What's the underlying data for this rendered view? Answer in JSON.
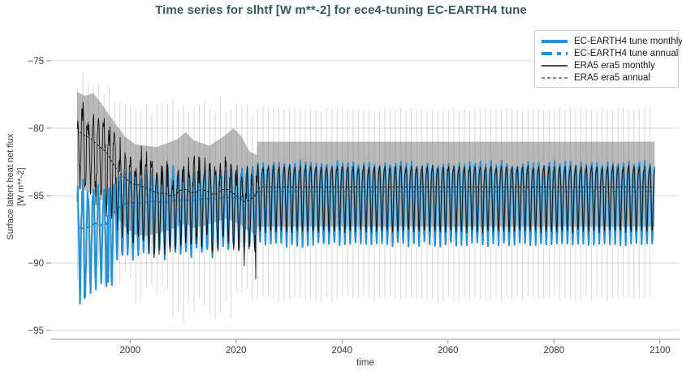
{
  "title": "Time series for slhtf [W m**-2] for ece4-tuning EC-EARTH4 tune",
  "colors": {
    "model_blue": "#2591d2",
    "ref_black": "#111111",
    "band_gray": "rgba(128,128,128,0.55)",
    "spike_gray": "rgba(130,130,130,0.30)",
    "grid": "#d9d9d9",
    "spine": "#b3b3b3",
    "tick_mark": "#8a8a8a",
    "tick_text": "#3a3a3a",
    "title_text": "#37585c"
  },
  "axes": {
    "x_label": "time",
    "y_label_line1": "Surface latent heat net flux",
    "y_label_line2": "[W m**-2]",
    "x_tick_labels": [
      "2000",
      "2020",
      "2040",
      "2060",
      "2080",
      "2100"
    ],
    "x_tick_values": [
      2000,
      2020,
      2040,
      2060,
      2080,
      2100
    ],
    "y_tick_labels": [
      "−75",
      "−80",
      "−85",
      "−90",
      "−95"
    ],
    "y_tick_values": [
      -75,
      -80,
      -85,
      -90,
      -95
    ]
  },
  "legend": {
    "items": [
      {
        "label": "EC-EARTH4 tune monthly",
        "style": "blue-solid"
      },
      {
        "label": "EC-EARTH4 tune annual",
        "style": "blue-dashed"
      },
      {
        "label": "ERA5 era5 monthly",
        "style": "black-solid"
      },
      {
        "label": "ERA5 era5 annual",
        "style": "black-dashed"
      }
    ]
  },
  "chart_data": {
    "type": "line",
    "title": "Time series for slhtf [W m**-2] for ece4-tuning EC-EARTH4 tune",
    "xlabel": "time",
    "ylabel": "Surface latent heat net flux [W m**-2]",
    "x_range": [
      1985.1,
      2103.7
    ],
    "y_range": [
      -95.6,
      -73.2
    ],
    "grid": "horizontal-only",
    "legend_position": "upper-right",
    "start_year": 1990,
    "end_year": 2098,
    "transition_year": 2024,
    "seed": 7,
    "series": [
      {
        "name": "EC-EARTH4 tune monthly",
        "role": "model_monthly",
        "color": "#2591d2",
        "width": 2.1,
        "dash": "solid"
      },
      {
        "name": "EC-EARTH4 tune annual",
        "role": "model_annual",
        "color": "#2591d2",
        "width": 2.1,
        "dash": "5.5 3",
        "constant_after_transition": -84.7
      },
      {
        "name": "ERA5 era5 monthly",
        "role": "ref_monthly",
        "color": "#111111",
        "width": 0.9,
        "dash": "solid"
      },
      {
        "name": "ERA5 era5 annual",
        "role": "ref_annual",
        "color": "#111111",
        "width": 0.9,
        "dash": "3 2.2",
        "constant_after_transition": -84.35
      }
    ],
    "ref_annual_keypoints": [
      [
        1990,
        -80.4
      ],
      [
        1991,
        -80.2
      ],
      [
        1992,
        -80.9
      ],
      [
        1993,
        -80.6
      ],
      [
        1994,
        -81.6
      ],
      [
        1995,
        -81.3
      ],
      [
        1996,
        -82.2
      ],
      [
        1997,
        -82.7
      ],
      [
        1998,
        -83.4
      ],
      [
        1999,
        -83.7
      ],
      [
        2000,
        -84.0
      ],
      [
        2001,
        -84.3
      ],
      [
        2002,
        -84.1
      ],
      [
        2003,
        -84.6
      ],
      [
        2004,
        -84.4
      ],
      [
        2005,
        -85.0
      ],
      [
        2006,
        -84.7
      ],
      [
        2007,
        -84.9
      ],
      [
        2008,
        -85.1
      ],
      [
        2009,
        -84.8
      ],
      [
        2010,
        -84.4
      ],
      [
        2011,
        -84.7
      ],
      [
        2012,
        -84.9
      ],
      [
        2013,
        -84.6
      ],
      [
        2014,
        -84.5
      ],
      [
        2015,
        -84.8
      ],
      [
        2016,
        -85.0
      ],
      [
        2017,
        -84.7
      ],
      [
        2018,
        -84.4
      ],
      [
        2019,
        -84.7
      ],
      [
        2020,
        -85.0
      ],
      [
        2021,
        -85.3
      ],
      [
        2022,
        -85.6
      ],
      [
        2023,
        -85.1
      ],
      [
        2023.99,
        -85.0
      ]
    ],
    "model_annual_keypoints": [
      [
        1990,
        -87.3
      ],
      [
        1991,
        -87.5
      ],
      [
        1992,
        -87.4
      ],
      [
        1993,
        -87.1
      ],
      [
        1994,
        -87.0
      ],
      [
        1995,
        -87.4
      ],
      [
        1996,
        -86.8
      ],
      [
        1997,
        -86.2
      ],
      [
        1998,
        -85.8
      ],
      [
        1999,
        -85.6
      ],
      [
        2000,
        -85.5
      ],
      [
        2002,
        -85.6
      ],
      [
        2004,
        -85.4
      ],
      [
        2006,
        -85.5
      ],
      [
        2008,
        -85.4
      ],
      [
        2010,
        -85.3
      ],
      [
        2012,
        -85.4
      ],
      [
        2014,
        -85.2
      ],
      [
        2016,
        -85.3
      ],
      [
        2018,
        -85.1
      ],
      [
        2020,
        -85.2
      ],
      [
        2022,
        -85.0
      ],
      [
        2023.99,
        -84.9
      ]
    ],
    "ref_monthly_anomaly": [
      1.3,
      1.5,
      0.9,
      -0.2,
      -1.6,
      -2.9,
      -3.3,
      -2.6,
      -1.2,
      0.2,
      0.9,
      1.2
    ],
    "model_monthly_anomaly": [
      1.6,
      2.1,
      1.3,
      0.1,
      -1.5,
      -3.1,
      -3.9,
      -3.1,
      -1.6,
      0.1,
      1.2,
      1.7
    ],
    "early_anomaly_scale_ref": 1.2,
    "early_anomaly_scale_model": 1.25,
    "noise": {
      "ref_early": 1.0,
      "ref_late": 0.1,
      "model_early": 0.8,
      "model_mid": 0.35,
      "model_late": 0.18,
      "model_mid_start": 1997
    },
    "extra_minima": {
      "ref": [
        [
          2023.71,
          -91.2
        ]
      ],
      "model": [
        [
          1991.38,
          -92.6
        ],
        [
          1995.88,
          -91.4
        ]
      ]
    },
    "band_keypoints": [
      [
        1990,
        -77.3,
        -84.4
      ],
      [
        1991.5,
        -77.6,
        -84.6
      ],
      [
        1993,
        -77.4,
        -84.9
      ],
      [
        1994.5,
        -78.1,
        -85.3
      ],
      [
        1996,
        -79.0,
        -85.8
      ],
      [
        1997.5,
        -79.8,
        -86.6
      ],
      [
        1999,
        -80.6,
        -87.3
      ],
      [
        2001,
        -81.2,
        -87.9
      ],
      [
        2003,
        -81.3,
        -88.0
      ],
      [
        2005,
        -81.4,
        -87.8
      ],
      [
        2007,
        -81.1,
        -87.6
      ],
      [
        2009,
        -80.8,
        -87.3
      ],
      [
        2010.5,
        -80.3,
        -87.1
      ],
      [
        2012,
        -80.9,
        -87.4
      ],
      [
        2013.5,
        -81.1,
        -87.3
      ],
      [
        2015,
        -81.3,
        -87.1
      ],
      [
        2016.5,
        -80.9,
        -86.9
      ],
      [
        2018,
        -80.5,
        -86.7
      ],
      [
        2019.5,
        -80.0,
        -86.9
      ],
      [
        2021,
        -80.6,
        -87.2
      ],
      [
        2022.5,
        -81.7,
        -87.7
      ],
      [
        2023.9,
        -82.0,
        -87.9
      ],
      [
        2024,
        -81.0,
        -87.3
      ],
      [
        2099,
        -81.0,
        -87.3
      ]
    ],
    "spike_top_keypoints": [
      [
        1990,
        -76.4
      ],
      [
        1994,
        -76.8
      ],
      [
        1997,
        -77.6
      ],
      [
        2000,
        -78.1
      ],
      [
        2005,
        -78.4
      ],
      [
        2010,
        -78.2
      ],
      [
        2015,
        -78.3
      ],
      [
        2020,
        -78.4
      ],
      [
        2024,
        -78.6
      ],
      [
        2099,
        -78.6
      ]
    ],
    "spike_bottom_keypoints": [
      [
        1990,
        -90.2
      ],
      [
        1993,
        -90.6
      ],
      [
        1996,
        -91.2
      ],
      [
        1999,
        -91.8
      ],
      [
        2002,
        -92.3
      ],
      [
        2005,
        -92.6
      ],
      [
        2008,
        -93.1
      ],
      [
        2011,
        -93.5
      ],
      [
        2014,
        -93.6
      ],
      [
        2017,
        -93.3
      ],
      [
        2020,
        -93.0
      ],
      [
        2023,
        -92.8
      ],
      [
        2024,
        -92.7
      ],
      [
        2099,
        -92.7
      ]
    ],
    "spike_jitter_early": 0.7,
    "spike_jitter_late": 0.15
  }
}
